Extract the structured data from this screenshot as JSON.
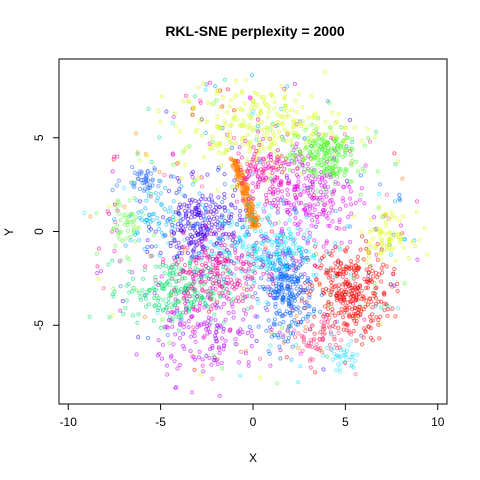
{
  "chart_data": {
    "type": "scatter",
    "title": "RKL-SNE perplexity = 2000",
    "xlabel": "X",
    "ylabel": "Y",
    "xlim": [
      -10.5,
      10.5
    ],
    "ylim": [
      -9.2,
      9.2
    ],
    "xticks": [
      -10,
      -5,
      0,
      5,
      10
    ],
    "yticks": [
      -5,
      0,
      5
    ],
    "xtick_labels": [
      "-10",
      "-5",
      "0",
      "5",
      "10"
    ],
    "ytick_labels": [
      "-5",
      "0",
      "5"
    ],
    "grid": false,
    "legend": "none",
    "marker": "open-circle",
    "clusters": [
      {
        "color": "#ff8000",
        "center": [
          -0.4,
          2.2
        ],
        "shape": "curve",
        "n": 220,
        "path": [
          [
            -1.0,
            3.8
          ],
          [
            -0.7,
            3.0
          ],
          [
            -0.4,
            2.0
          ],
          [
            -0.1,
            0.9
          ],
          [
            0.1,
            0.3
          ]
        ],
        "spread": 0.12
      },
      {
        "color": "#ff0000",
        "center": [
          5.2,
          -3.3
        ],
        "spread": [
          1.1,
          1.3
        ],
        "n": 320
      },
      {
        "color": "#0060ff",
        "center": [
          1.8,
          -3.0
        ],
        "spread": [
          0.7,
          1.2
        ],
        "n": 260
      },
      {
        "color": "#4000ff",
        "center": [
          -2.8,
          0.2
        ],
        "spread": [
          1.1,
          1.1
        ],
        "n": 260
      },
      {
        "color": "#00e070",
        "center": [
          -4.2,
          -3.2
        ],
        "spread": [
          1.4,
          0.9
        ],
        "n": 220
      },
      {
        "color": "#e000ff",
        "center": [
          3.0,
          2.0
        ],
        "spread": [
          1.3,
          1.5
        ],
        "n": 240
      },
      {
        "color": "#d0ff00",
        "center": [
          0.4,
          5.5
        ],
        "spread": [
          2.2,
          1.1
        ],
        "n": 260
      },
      {
        "color": "#40ff20",
        "center": [
          3.8,
          4.0
        ],
        "spread": [
          0.9,
          0.8
        ],
        "n": 180
      },
      {
        "color": "#00e8ff",
        "center": [
          0.6,
          -0.7
        ],
        "spread": [
          1.6,
          1.0
        ],
        "n": 200
      },
      {
        "color": "#ff0090",
        "center": [
          -2.0,
          -2.2
        ],
        "spread": [
          1.2,
          1.0
        ],
        "n": 180
      },
      {
        "color": "#c000ff",
        "center": [
          -2.3,
          -5.5
        ],
        "spread": [
          1.4,
          1.2
        ],
        "n": 140
      },
      {
        "color": "#ff00a0",
        "center": [
          0.6,
          3.0
        ],
        "spread": [
          0.8,
          0.9
        ],
        "n": 100
      },
      {
        "color": "#3070ff",
        "center": [
          -6.0,
          2.8
        ],
        "spread": [
          0.5,
          0.3
        ],
        "n": 45
      },
      {
        "color": "#d8ff00",
        "center": [
          7.2,
          -0.2
        ],
        "spread": [
          0.7,
          0.6
        ],
        "n": 70
      },
      {
        "color": "#00b0ff",
        "center": [
          -5.0,
          0.8
        ],
        "spread": [
          0.9,
          0.9
        ],
        "n": 70
      },
      {
        "color": "#60ff40",
        "center": [
          -7.0,
          0.4
        ],
        "spread": [
          0.6,
          0.8
        ],
        "n": 50
      },
      {
        "color": "#ff4080",
        "center": [
          3.5,
          -5.8
        ],
        "spread": [
          0.8,
          0.6
        ],
        "n": 60
      },
      {
        "color": "#30e0ff",
        "center": [
          4.8,
          -6.8
        ],
        "spread": [
          0.5,
          0.4
        ],
        "n": 35
      }
    ],
    "background_noise": {
      "n": 420,
      "radius": 8.8
    }
  }
}
